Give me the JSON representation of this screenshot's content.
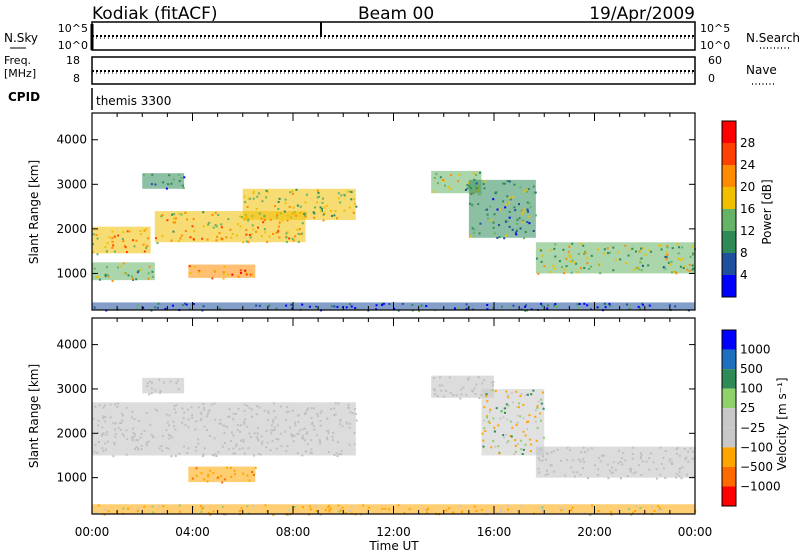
{
  "header": {
    "station": "Kodiak (fitACF)",
    "beam": "Beam 00",
    "date": "19/Apr/2009"
  },
  "status_panels": {
    "nsky_label": "N.Sky",
    "nsky_ticks": [
      "10^5",
      "10^0"
    ],
    "nsearch_label": "N.Search",
    "nsearch_ticks": [
      "10^5",
      "10^0"
    ],
    "freq_label": "Freq.",
    "freq_unit": "[MHz]",
    "freq_ticks": [
      "18",
      "8"
    ],
    "nave_label": "Nave",
    "nave_ticks": [
      "60",
      "0"
    ],
    "cpid_label": "CPID",
    "cpid_value": "themis 3300"
  },
  "colors": {
    "power_scale": [
      "#0000ff",
      "#1f4f9f",
      "#2e8b57",
      "#66b266",
      "#f0c000",
      "#ff8c00",
      "#ff4000",
      "#ff0000"
    ],
    "velocity_scale": [
      "#ff0000",
      "#ff6a00",
      "#ffa500",
      "#c8c8c8",
      "#c8c8c8",
      "#8fd16a",
      "#2e8b57",
      "#1f6fbf",
      "#0000ff"
    ],
    "ground_scatter": "#c0c0c0"
  },
  "chart_data": [
    {
      "type": "heatmap",
      "panel": "power",
      "title": "",
      "xlabel": "Time UT",
      "ylabel": "Slant Range [km]",
      "xlim": [
        "00:00",
        "24:00"
      ],
      "ylim": [
        180,
        4600
      ],
      "x_ticks": [
        "00:00",
        "04:00",
        "08:00",
        "12:00",
        "16:00",
        "20:00",
        "00:00"
      ],
      "y_ticks": [
        "1000",
        "2000",
        "3000",
        "4000"
      ],
      "colorbar": {
        "label": "Power [dB]",
        "ticks": [
          "4",
          "8",
          "12",
          "16",
          "20",
          "24",
          "28"
        ],
        "range": [
          0,
          30
        ]
      },
      "regions": [
        {
          "x": [
            "00:00",
            "02:20"
          ],
          "range_km": [
            1450,
            2050
          ],
          "value_db": 18
        },
        {
          "x": [
            "00:00",
            "02:30"
          ],
          "range_km": [
            850,
            1250
          ],
          "value_db": 14
        },
        {
          "x": [
            "02:30",
            "08:30"
          ],
          "range_km": [
            1700,
            2400
          ],
          "value_db": 18
        },
        {
          "x": [
            "06:00",
            "10:30"
          ],
          "range_km": [
            2200,
            2900
          ],
          "value_db": 15
        },
        {
          "x": [
            "03:50",
            "06:30"
          ],
          "range_km": [
            900,
            1200
          ],
          "value_db": 22
        },
        {
          "x": [
            "02:00",
            "03:40"
          ],
          "range_km": [
            2900,
            3250
          ],
          "value_db": 10
        },
        {
          "x": [
            "13:30",
            "15:30"
          ],
          "range_km": [
            2800,
            3300
          ],
          "value_db": 14
        },
        {
          "x": [
            "15:00",
            "17:40"
          ],
          "range_km": [
            1800,
            3100
          ],
          "value_db": 10
        },
        {
          "x": [
            "17:40",
            "24:00"
          ],
          "range_km": [
            1000,
            1700
          ],
          "value_db": 14
        },
        {
          "x": [
            "00:00",
            "24:00"
          ],
          "range_km": [
            180,
            350
          ],
          "value_db": 6
        }
      ]
    },
    {
      "type": "heatmap",
      "panel": "velocity",
      "title": "",
      "xlabel": "Time UT",
      "ylabel": "Slant Range [km]",
      "xlim": [
        "00:00",
        "24:00"
      ],
      "ylim": [
        180,
        4600
      ],
      "x_ticks": [
        "00:00",
        "04:00",
        "08:00",
        "12:00",
        "16:00",
        "20:00",
        "00:00"
      ],
      "y_ticks": [
        "1000",
        "2000",
        "3000",
        "4000"
      ],
      "colorbar": {
        "label": "Velocity [m s⁻¹]",
        "ticks": [
          "1000",
          "500",
          "100",
          "25",
          "−25",
          "−100",
          "−500",
          "−1000"
        ]
      },
      "regions": [
        {
          "x": [
            "00:00",
            "10:30"
          ],
          "range_km": [
            1500,
            2700
          ],
          "value_ms": 0,
          "ground_scatter": true
        },
        {
          "x": [
            "03:50",
            "06:30"
          ],
          "range_km": [
            900,
            1250
          ],
          "value_ms": -400
        },
        {
          "x": [
            "02:00",
            "03:40"
          ],
          "range_km": [
            2900,
            3250
          ],
          "value_ms": 0,
          "ground_scatter": true
        },
        {
          "x": [
            "13:30",
            "16:00"
          ],
          "range_km": [
            2800,
            3300
          ],
          "value_ms": 0,
          "ground_scatter": true
        },
        {
          "x": [
            "15:30",
            "18:00"
          ],
          "range_km": [
            1500,
            3000
          ],
          "value_ms": -50
        },
        {
          "x": [
            "17:40",
            "24:00"
          ],
          "range_km": [
            1000,
            1700
          ],
          "value_ms": 0,
          "ground_scatter": true
        },
        {
          "x": [
            "00:00",
            "24:00"
          ],
          "range_km": [
            180,
            400
          ],
          "value_ms": -150
        }
      ]
    }
  ]
}
